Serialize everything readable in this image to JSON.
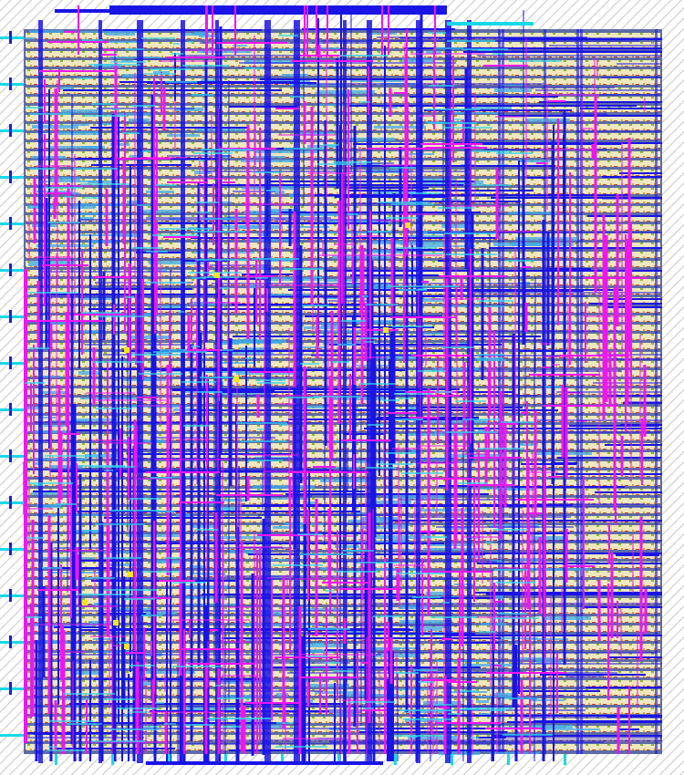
{
  "view": {
    "type": "ic-layout-render",
    "colors": {
      "background": "#ffffff",
      "hatch": "#b9b9b9",
      "core_fill": "#5d6ca6",
      "std_cell_row": "#f6edc0",
      "std_cell_row_alt": "#fff8dd",
      "cell_detail_red": "#d9401e",
      "cell_detail_green": "#8bbd2a",
      "cell_detail_orange": "#f0a030",
      "metal1_blue": "#1a14e6",
      "metal2_magenta": "#ef16ef",
      "metal3_cyan": "#2fd6ee",
      "light_blue_fill": "#3fa9e8",
      "via_yellow": "#f2e81a",
      "io_pin_cyan": "#18d9e8",
      "io_pin_dark_blue": "#1b22c8"
    },
    "layers": [
      {
        "name": "standard-cell-rows",
        "color_key": "std_cell_row"
      },
      {
        "name": "metal-1",
        "color_key": "metal1_blue"
      },
      {
        "name": "metal-2",
        "color_key": "metal2_magenta"
      },
      {
        "name": "metal-3",
        "color_key": "metal3_cyan"
      },
      {
        "name": "vias",
        "color_key": "via_yellow"
      },
      {
        "name": "io-pins",
        "color_key": "io_pin_cyan"
      }
    ],
    "io_pin_count_left": 15,
    "via_marker_count": 9
  }
}
